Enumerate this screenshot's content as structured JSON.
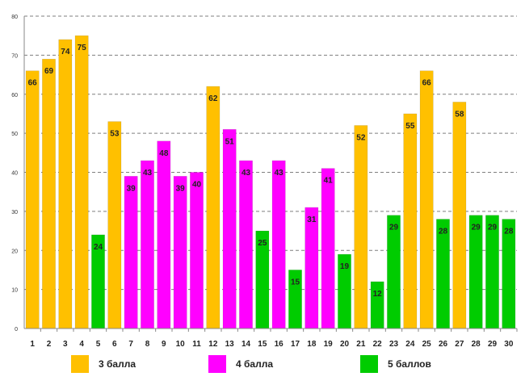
{
  "chart_data": {
    "type": "bar",
    "title": "",
    "xlabel": "",
    "ylabel": "",
    "ylim": [
      0,
      80
    ],
    "yticks": [
      0,
      10,
      20,
      30,
      40,
      50,
      60,
      70,
      80
    ],
    "grid": true,
    "categories": [
      "1",
      "2",
      "3",
      "4",
      "5",
      "6",
      "7",
      "8",
      "9",
      "10",
      "11",
      "12",
      "13",
      "14",
      "15",
      "16",
      "17",
      "18",
      "19",
      "20",
      "21",
      "22",
      "23",
      "24",
      "25",
      "26",
      "27",
      "28",
      "29",
      "30"
    ],
    "values": [
      66,
      69,
      74,
      75,
      24,
      53,
      39,
      43,
      48,
      39,
      40,
      62,
      51,
      43,
      25,
      43,
      15,
      31,
      41,
      19,
      52,
      12,
      29,
      55,
      66,
      28,
      58,
      29,
      29,
      28
    ],
    "groups": [
      "3",
      "3",
      "3",
      "3",
      "5",
      "3",
      "4",
      "4",
      "4",
      "4",
      "4",
      "3",
      "4",
      "4",
      "5",
      "4",
      "5",
      "4",
      "4",
      "5",
      "3",
      "5",
      "5",
      "3",
      "3",
      "5",
      "3",
      "5",
      "5",
      "5"
    ],
    "legend_position": "bottom",
    "series": [
      {
        "key": "3",
        "name": "3 балла",
        "color": "#FFC000"
      },
      {
        "key": "4",
        "name": "4 балла",
        "color": "#FF00FF"
      },
      {
        "key": "5",
        "name": "5 баллов",
        "color": "#00CC00"
      }
    ]
  }
}
